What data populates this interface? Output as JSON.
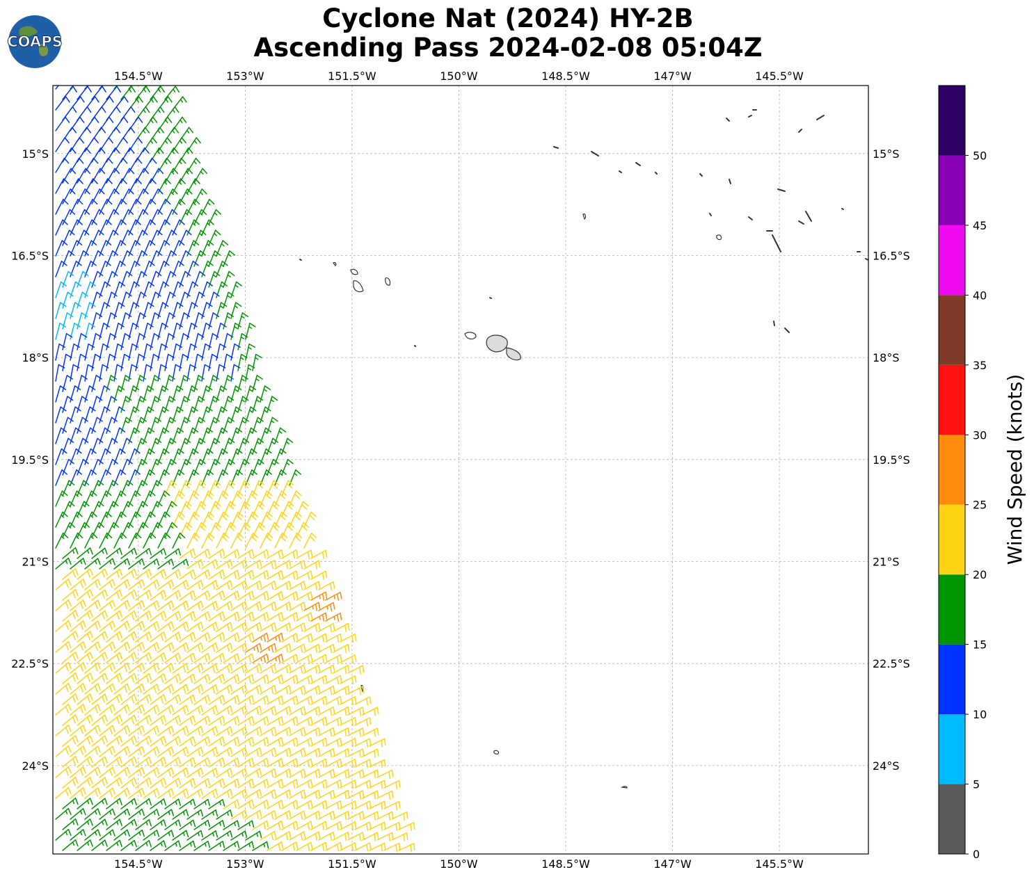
{
  "header": {
    "title_line1": "Cyclone Nat (2024) HY-2B",
    "title_line2": "Ascending Pass 2024-02-08 05:04Z"
  },
  "logo": {
    "text": "COAPS",
    "icon": "globe-logo-icon"
  },
  "map": {
    "lon_range": [
      -155.7,
      -144.25
    ],
    "lat_range": [
      -25.3,
      -14.0
    ],
    "lon_ticks": [
      "154.5°W",
      "153°W",
      "151.5°W",
      "150°W",
      "148.5°W",
      "147°W",
      "145.5°W"
    ],
    "lon_tick_values": [
      -154.5,
      -153,
      -151.5,
      -150,
      -148.5,
      -147,
      -145.5
    ],
    "lat_ticks": [
      "15°S",
      "16.5°S",
      "18°S",
      "19.5°S",
      "21°S",
      "22.5°S",
      "24°S"
    ],
    "lat_tick_values": [
      -15,
      -16.5,
      -18,
      -19.5,
      -21,
      -22.5,
      -24
    ],
    "gridlines": true,
    "land_outline_color": "#333333"
  },
  "colorbar": {
    "label": "Wind Speed (knots)",
    "tick_labels": [
      "0",
      "5",
      "10",
      "15",
      "20",
      "25",
      "30",
      "35",
      "40",
      "45",
      "50"
    ],
    "bins": [
      {
        "min": 0,
        "max": 5,
        "color": "#5a5a5a"
      },
      {
        "min": 5,
        "max": 10,
        "color": "#00bbff"
      },
      {
        "min": 10,
        "max": 15,
        "color": "#0033ff"
      },
      {
        "min": 15,
        "max": 20,
        "color": "#009600"
      },
      {
        "min": 20,
        "max": 25,
        "color": "#ffd414"
      },
      {
        "min": 25,
        "max": 30,
        "color": "#ff8c0a"
      },
      {
        "min": 30,
        "max": 35,
        "color": "#ff0f0f"
      },
      {
        "min": 35,
        "max": 40,
        "color": "#7f3b28"
      },
      {
        "min": 40,
        "max": 45,
        "color": "#f00af0"
      },
      {
        "min": 45,
        "max": 50,
        "color": "#8a00b4"
      },
      {
        "min": 50,
        "max": 55,
        "color": "#2d0064"
      }
    ]
  }
}
